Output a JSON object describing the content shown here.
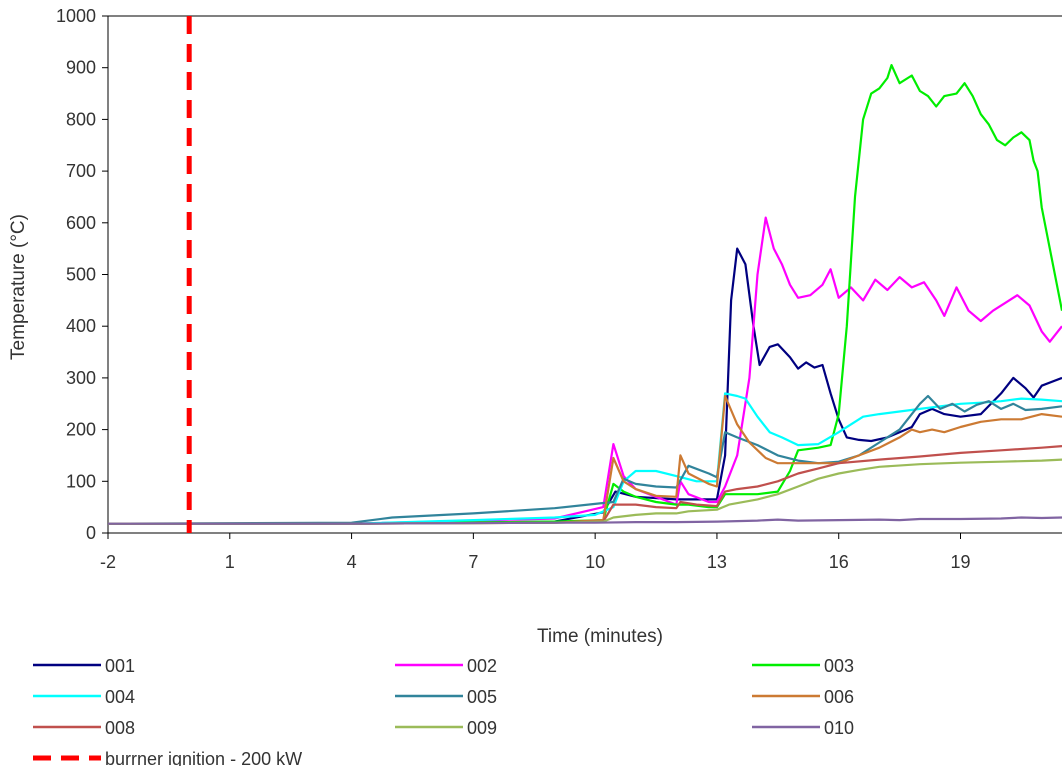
{
  "chart_data": {
    "type": "line",
    "title": "",
    "xlabel": "Time (minutes)",
    "ylabel": "Temperature (°C)",
    "xlim": [
      -2,
      21.5
    ],
    "ylim": [
      0,
      1000
    ],
    "x_ticks": [
      -2,
      1,
      4,
      7,
      10,
      13,
      16,
      19
    ],
    "y_ticks": [
      0,
      100,
      200,
      300,
      400,
      500,
      600,
      700,
      800,
      900,
      1000
    ],
    "grid": false,
    "legend_position": "bottom",
    "vertical_marker": {
      "name": "burrner ignition - 200 kW",
      "x": 0,
      "color": "#ff0000",
      "style": "dashed"
    },
    "series": [
      {
        "name": "001",
        "color": "#000080",
        "points": [
          [
            -2,
            18
          ],
          [
            4,
            18
          ],
          [
            9,
            22
          ],
          [
            10.2,
            40
          ],
          [
            10.5,
            80
          ],
          [
            11,
            70
          ],
          [
            12,
            65
          ],
          [
            13,
            65
          ],
          [
            13.2,
            150
          ],
          [
            13.35,
            450
          ],
          [
            13.5,
            550
          ],
          [
            13.7,
            520
          ],
          [
            13.9,
            400
          ],
          [
            14.05,
            325
          ],
          [
            14.3,
            360
          ],
          [
            14.5,
            365
          ],
          [
            14.8,
            340
          ],
          [
            15,
            318
          ],
          [
            15.2,
            330
          ],
          [
            15.4,
            320
          ],
          [
            15.6,
            325
          ],
          [
            15.8,
            270
          ],
          [
            16,
            220
          ],
          [
            16.2,
            185
          ],
          [
            16.5,
            180
          ],
          [
            16.8,
            178
          ],
          [
            17.2,
            185
          ],
          [
            17.5,
            195
          ],
          [
            17.8,
            205
          ],
          [
            18,
            230
          ],
          [
            18.3,
            240
          ],
          [
            18.6,
            230
          ],
          [
            19,
            225
          ],
          [
            19.5,
            230
          ],
          [
            20,
            270
          ],
          [
            20.3,
            300
          ],
          [
            20.6,
            280
          ],
          [
            20.8,
            262
          ],
          [
            21,
            285
          ],
          [
            21.5,
            300
          ]
        ]
      },
      {
        "name": "002",
        "color": "#ff00ff",
        "points": [
          [
            -2,
            18
          ],
          [
            4,
            18
          ],
          [
            9,
            28
          ],
          [
            10.2,
            50
          ],
          [
            10.45,
            172
          ],
          [
            10.7,
            110
          ],
          [
            11,
            85
          ],
          [
            11.5,
            70
          ],
          [
            12,
            55
          ],
          [
            12.1,
            100
          ],
          [
            12.3,
            75
          ],
          [
            12.8,
            60
          ],
          [
            13,
            60
          ],
          [
            13.2,
            90
          ],
          [
            13.5,
            150
          ],
          [
            13.8,
            300
          ],
          [
            14,
            500
          ],
          [
            14.2,
            610
          ],
          [
            14.4,
            550
          ],
          [
            14.6,
            520
          ],
          [
            14.8,
            480
          ],
          [
            15,
            455
          ],
          [
            15.3,
            460
          ],
          [
            15.6,
            480
          ],
          [
            15.8,
            510
          ],
          [
            16,
            455
          ],
          [
            16.3,
            475
          ],
          [
            16.6,
            450
          ],
          [
            16.9,
            490
          ],
          [
            17.2,
            470
          ],
          [
            17.5,
            495
          ],
          [
            17.8,
            475
          ],
          [
            18.1,
            485
          ],
          [
            18.4,
            450
          ],
          [
            18.6,
            420
          ],
          [
            18.9,
            475
          ],
          [
            19.2,
            430
          ],
          [
            19.5,
            410
          ],
          [
            19.8,
            430
          ],
          [
            20.1,
            445
          ],
          [
            20.4,
            460
          ],
          [
            20.7,
            440
          ],
          [
            21,
            390
          ],
          [
            21.2,
            370
          ],
          [
            21.5,
            400
          ]
        ]
      },
      {
        "name": "003",
        "color": "#00ee00",
        "points": [
          [
            -2,
            18
          ],
          [
            4,
            18
          ],
          [
            9,
            22
          ],
          [
            10.2,
            25
          ],
          [
            10.45,
            95
          ],
          [
            10.7,
            80
          ],
          [
            11,
            70
          ],
          [
            11.5,
            60
          ],
          [
            12,
            55
          ],
          [
            12.3,
            55
          ],
          [
            12.8,
            50
          ],
          [
            13,
            50
          ],
          [
            13.2,
            75
          ],
          [
            13.5,
            75
          ],
          [
            14,
            75
          ],
          [
            14.5,
            80
          ],
          [
            14.8,
            120
          ],
          [
            15,
            160
          ],
          [
            15.5,
            165
          ],
          [
            15.8,
            170
          ],
          [
            16,
            230
          ],
          [
            16.2,
            400
          ],
          [
            16.4,
            650
          ],
          [
            16.6,
            800
          ],
          [
            16.8,
            850
          ],
          [
            17,
            860
          ],
          [
            17.2,
            880
          ],
          [
            17.3,
            905
          ],
          [
            17.5,
            870
          ],
          [
            17.8,
            885
          ],
          [
            18,
            855
          ],
          [
            18.2,
            845
          ],
          [
            18.4,
            825
          ],
          [
            18.6,
            845
          ],
          [
            18.9,
            850
          ],
          [
            19.1,
            870
          ],
          [
            19.3,
            845
          ],
          [
            19.5,
            810
          ],
          [
            19.7,
            790
          ],
          [
            19.9,
            760
          ],
          [
            20.1,
            750
          ],
          [
            20.3,
            765
          ],
          [
            20.5,
            775
          ],
          [
            20.7,
            760
          ],
          [
            20.8,
            720
          ],
          [
            20.9,
            700
          ],
          [
            21,
            630
          ],
          [
            21.2,
            550
          ],
          [
            21.5,
            430
          ]
        ]
      },
      {
        "name": "004",
        "color": "#00ffff",
        "points": [
          [
            -2,
            18
          ],
          [
            4,
            18
          ],
          [
            7,
            25
          ],
          [
            9,
            30
          ],
          [
            10,
            35
          ],
          [
            10.45,
            50
          ],
          [
            10.7,
            100
          ],
          [
            11,
            120
          ],
          [
            11.5,
            120
          ],
          [
            12,
            110
          ],
          [
            12.5,
            100
          ],
          [
            13,
            100
          ],
          [
            13.2,
            270
          ],
          [
            13.5,
            265
          ],
          [
            13.7,
            260
          ],
          [
            14,
            225
          ],
          [
            14.3,
            195
          ],
          [
            14.6,
            185
          ],
          [
            15,
            170
          ],
          [
            15.5,
            172
          ],
          [
            16,
            195
          ],
          [
            16.3,
            210
          ],
          [
            16.6,
            225
          ],
          [
            17,
            230
          ],
          [
            17.5,
            235
          ],
          [
            18,
            240
          ],
          [
            18.5,
            245
          ],
          [
            19,
            250
          ],
          [
            19.5,
            252
          ],
          [
            20,
            255
          ],
          [
            20.5,
            260
          ],
          [
            21,
            258
          ],
          [
            21.5,
            255
          ]
        ]
      },
      {
        "name": "005",
        "color": "#31849b",
        "points": [
          [
            -2,
            18
          ],
          [
            4,
            20
          ],
          [
            5,
            30
          ],
          [
            7,
            38
          ],
          [
            9,
            48
          ],
          [
            10.2,
            58
          ],
          [
            10.45,
            60
          ],
          [
            10.7,
            105
          ],
          [
            11,
            95
          ],
          [
            11.5,
            90
          ],
          [
            12,
            88
          ],
          [
            12.3,
            130
          ],
          [
            12.8,
            115
          ],
          [
            13,
            108
          ],
          [
            13.2,
            195
          ],
          [
            13.5,
            185
          ],
          [
            14,
            170
          ],
          [
            14.5,
            150
          ],
          [
            15,
            140
          ],
          [
            15.5,
            135
          ],
          [
            16,
            138
          ],
          [
            16.5,
            150
          ],
          [
            17,
            175
          ],
          [
            17.5,
            200
          ],
          [
            18,
            250
          ],
          [
            18.2,
            265
          ],
          [
            18.5,
            240
          ],
          [
            18.8,
            250
          ],
          [
            19.1,
            235
          ],
          [
            19.4,
            248
          ],
          [
            19.7,
            255
          ],
          [
            20,
            240
          ],
          [
            20.3,
            250
          ],
          [
            20.6,
            238
          ],
          [
            21,
            240
          ],
          [
            21.5,
            245
          ]
        ]
      },
      {
        "name": "006",
        "color": "#cc7a33",
        "points": [
          [
            -2,
            18
          ],
          [
            4,
            18
          ],
          [
            9,
            20
          ],
          [
            10.2,
            25
          ],
          [
            10.45,
            145
          ],
          [
            10.7,
            100
          ],
          [
            11,
            85
          ],
          [
            11.5,
            72
          ],
          [
            12,
            70
          ],
          [
            12.1,
            150
          ],
          [
            12.3,
            115
          ],
          [
            12.8,
            95
          ],
          [
            13,
            90
          ],
          [
            13.2,
            265
          ],
          [
            13.5,
            210
          ],
          [
            13.8,
            175
          ],
          [
            14.2,
            145
          ],
          [
            14.5,
            135
          ],
          [
            15,
            135
          ],
          [
            15.5,
            135
          ],
          [
            16,
            135
          ],
          [
            16.5,
            150
          ],
          [
            17,
            165
          ],
          [
            17.5,
            185
          ],
          [
            17.8,
            200
          ],
          [
            18,
            195
          ],
          [
            18.3,
            200
          ],
          [
            18.6,
            195
          ],
          [
            19,
            205
          ],
          [
            19.5,
            215
          ],
          [
            20,
            220
          ],
          [
            20.5,
            220
          ],
          [
            21,
            230
          ],
          [
            21.5,
            225
          ]
        ]
      },
      {
        "name": "008",
        "color": "#c0504d",
        "points": [
          [
            -2,
            18
          ],
          [
            4,
            18
          ],
          [
            9,
            20
          ],
          [
            10.2,
            22
          ],
          [
            10.45,
            55
          ],
          [
            11,
            55
          ],
          [
            11.5,
            50
          ],
          [
            12,
            48
          ],
          [
            12.1,
            60
          ],
          [
            12.5,
            55
          ],
          [
            13,
            52
          ],
          [
            13.2,
            80
          ],
          [
            13.5,
            85
          ],
          [
            14,
            90
          ],
          [
            14.5,
            100
          ],
          [
            15,
            115
          ],
          [
            15.5,
            125
          ],
          [
            16,
            135
          ],
          [
            17,
            142
          ],
          [
            18,
            148
          ],
          [
            19,
            155
          ],
          [
            20,
            160
          ],
          [
            21,
            165
          ],
          [
            21.5,
            168
          ]
        ]
      },
      {
        "name": "009",
        "color": "#9bbb59",
        "points": [
          [
            -2,
            18
          ],
          [
            4,
            18
          ],
          [
            9,
            20
          ],
          [
            10.2,
            22
          ],
          [
            10.45,
            30
          ],
          [
            11,
            35
          ],
          [
            11.5,
            38
          ],
          [
            12,
            38
          ],
          [
            12.3,
            42
          ],
          [
            13,
            45
          ],
          [
            13.3,
            55
          ],
          [
            14,
            65
          ],
          [
            14.5,
            75
          ],
          [
            15,
            90
          ],
          [
            15.5,
            105
          ],
          [
            16,
            115
          ],
          [
            16.5,
            122
          ],
          [
            17,
            128
          ],
          [
            18,
            133
          ],
          [
            19,
            136
          ],
          [
            20,
            138
          ],
          [
            21,
            140
          ],
          [
            21.5,
            142
          ]
        ]
      },
      {
        "name": "010",
        "color": "#8064a2",
        "points": [
          [
            -2,
            18
          ],
          [
            4,
            18
          ],
          [
            9,
            20
          ],
          [
            10,
            20
          ],
          [
            11,
            21
          ],
          [
            12,
            21
          ],
          [
            13,
            22
          ],
          [
            14,
            24
          ],
          [
            14.5,
            26
          ],
          [
            15,
            24
          ],
          [
            16,
            25
          ],
          [
            17,
            26
          ],
          [
            17.5,
            25
          ],
          [
            18,
            27
          ],
          [
            19,
            27
          ],
          [
            20,
            28
          ],
          [
            20.5,
            30
          ],
          [
            21,
            29
          ],
          [
            21.5,
            30
          ]
        ]
      }
    ]
  }
}
